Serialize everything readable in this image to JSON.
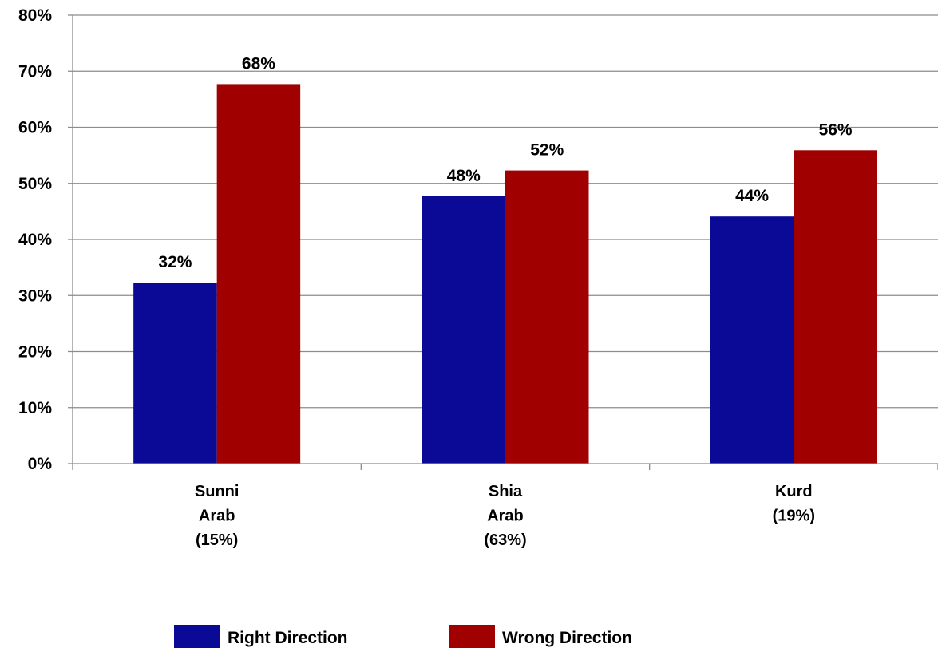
{
  "chart_data": {
    "type": "bar",
    "categories": [
      [
        "Sunni",
        "Arab",
        "(15%)"
      ],
      [
        "Shia",
        "Arab",
        "(63%)"
      ],
      [
        "Kurd",
        "(19%)"
      ]
    ],
    "series": [
      {
        "name": "Right Direction",
        "color": "#0a0a96",
        "values": [
          32.3,
          47.7,
          44.1
        ],
        "labels": [
          "32%",
          "48%",
          "44%"
        ]
      },
      {
        "name": "Wrong Direction",
        "color": "#a00000",
        "values": [
          67.7,
          52.3,
          55.9
        ],
        "labels": [
          "68%",
          "52%",
          "56%"
        ]
      }
    ],
    "ylim": [
      0,
      80
    ],
    "yticks": [
      0,
      10,
      20,
      30,
      40,
      50,
      60,
      70,
      80
    ],
    "ytick_labels": [
      "0%",
      "10%",
      "20%",
      "30%",
      "40%",
      "50%",
      "60%",
      "70%",
      "80%"
    ],
    "grid": true,
    "legend_position": "bottom"
  }
}
